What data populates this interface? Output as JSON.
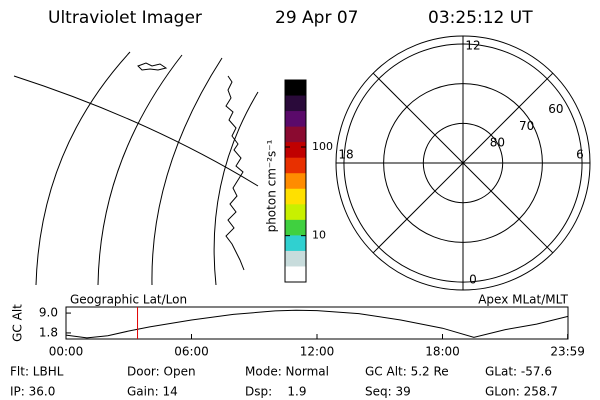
{
  "header": {
    "title": "Ultraviolet Imager",
    "date": "29 Apr 07",
    "time": "03:25:12 UT"
  },
  "chart_data": [
    {
      "type": "colorbar",
      "label": "photon cm⁻²s⁻¹",
      "log_scale": true,
      "ylim": [
        3,
        570
      ],
      "yticks": [
        10,
        100
      ],
      "colors": [
        "#000000",
        "#2a0a3a",
        "#5a0a6a",
        "#8a0a30",
        "#c00000",
        "#e83000",
        "#ff8c00",
        "#ffe000",
        "#c8f000",
        "#40d040",
        "#30d0d0",
        "#c8dcdc",
        "#ffffff"
      ]
    },
    {
      "type": "polar",
      "rlim": [
        90,
        58
      ],
      "rticks": [
        80,
        70,
        60
      ],
      "mlt_ticks": [
        12,
        18,
        6,
        0
      ]
    },
    {
      "type": "line",
      "title_left": "Geographic Lat/Lon",
      "title_right": "Apex MLat/MLT",
      "ylabel": "GC Alt",
      "x": [
        0,
        1,
        2,
        3,
        4,
        6,
        8,
        10,
        11,
        12,
        14,
        16,
        18,
        19.5,
        21,
        22.5,
        24
      ],
      "values": [
        1.0,
        0.0,
        0.8,
        2.5,
        4.0,
        6.5,
        8.5,
        9.8,
        10.0,
        9.9,
        8.8,
        6.5,
        3.5,
        0.2,
        3.0,
        5.0,
        7.8
      ],
      "color": "#000000",
      "marker": 3.42,
      "marker_color": "#e00000",
      "xlim": [
        0,
        24
      ],
      "ylim": [
        -0.4,
        11.2
      ],
      "xticks": [
        {
          "value": 0,
          "label": "00:00"
        },
        {
          "value": 6,
          "label": "06:00"
        },
        {
          "value": 12,
          "label": "12:00"
        },
        {
          "value": 18,
          "label": "18:00"
        },
        {
          "value": 23.983,
          "label": "23:59"
        }
      ],
      "yticks": [
        {
          "value": 9,
          "label": "9.0"
        },
        {
          "value": 1.8,
          "label": "1.8"
        }
      ]
    }
  ],
  "footer": {
    "rows": [
      [
        "Flt: LBHL",
        "Door: Open",
        "Mode: Normal",
        "GC Alt: 5.2 Re",
        "GLat: -57.6"
      ],
      [
        "IP: 36.0",
        "Gain: 14",
        "Dsp:    1.9",
        "Seq: 39",
        "GLon: 258.7"
      ]
    ]
  }
}
